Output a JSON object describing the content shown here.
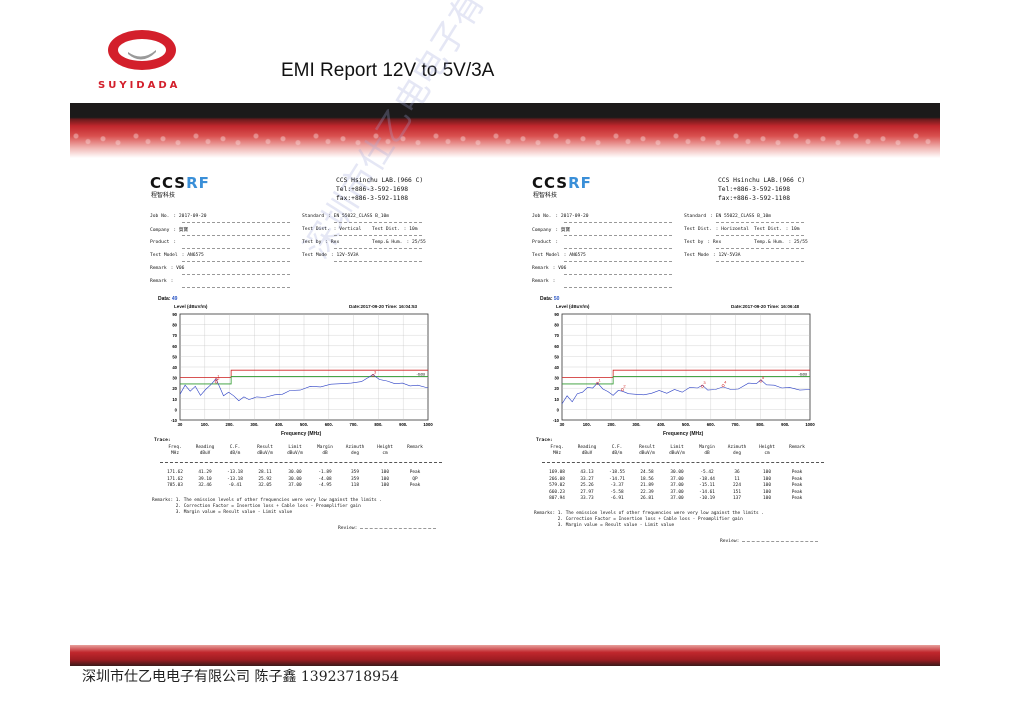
{
  "brand": {
    "logo_text": "SUYIDADA",
    "accent": "#d31f2b"
  },
  "title": "EMI Report 12V to 5V/3A",
  "footer": "深圳市仕乙电电子有限公司 陈子鑫 13923718954",
  "watermark": "深圳市仕乙电电子有限公司",
  "reports": [
    {
      "logo_main": "CCS",
      "logo_rf": "RF",
      "logo_sub": "程智科技",
      "lab_lines": [
        "CCS Hsinchu LAB.(966 C)",
        "Tel:+886-3-592-1698",
        "fax:+886-3-592-1108"
      ],
      "fields": {
        "job_no": {
          "label": "Job No.",
          "value": ": 2017-09-20"
        },
        "company": {
          "label": "Company",
          "value": ": 賀寶"
        },
        "product": {
          "label": "Product",
          "value": ":"
        },
        "test_model": {
          "label": "Test Model",
          "value": ": AN6575"
        },
        "remark1": {
          "label": "Remark",
          "value": ": V06"
        },
        "remark2": {
          "label": "Remark",
          "value": ":"
        },
        "standard": {
          "label": "Standard",
          "value": ": EN 55022_CLASS B_10m"
        },
        "test_dist": {
          "label": "Test Dist.",
          "value": ": Vertical"
        },
        "test_dist2": {
          "label": "Test Dist.",
          "value": ": 10m"
        },
        "test_by": {
          "label": "Test by",
          "value": ": Rex"
        },
        "temp_hum": {
          "label": "Temp.& Hum.",
          "value": ": 25/55"
        },
        "test_mode": {
          "label": "Test Mode",
          "value": ": 12V-5V3A"
        }
      },
      "data_label": "Data:",
      "data_no": "49",
      "date": "Date:2017-09-20  Time: 16:04:53",
      "level_label": "Level (dBuV/m)",
      "freq_label": "Frequency (MHz)",
      "limit_label": "-6dB",
      "trace_label": "Trace:",
      "headers": [
        "Freq.",
        "Reading",
        "C.F.",
        "Result",
        "Limit",
        "Margin",
        "Azimuth",
        "Height",
        "Remark"
      ],
      "units": [
        "MHz",
        "dBuV",
        "dB/m",
        "dBuV/m",
        "dBuV/m",
        "dB",
        "deg",
        "cm",
        ""
      ],
      "rows": [
        [
          "171.62",
          "41.29",
          "-13.18",
          "28.11",
          "30.00",
          "-1.89",
          "359",
          "100",
          "Peak"
        ],
        [
          "171.62",
          "39.10",
          "-13.18",
          "25.92",
          "30.00",
          "-4.08",
          "359",
          "100",
          "QP"
        ],
        [
          "785.03",
          "32.46",
          "-0.41",
          "32.05",
          "37.00",
          "-4.95",
          "118",
          "100",
          "Peak"
        ]
      ],
      "remarks": [
        "Remarks: 1. The emission levels of other frequencies were very low against the limits .",
        "         2. Correction Factor = Insertion loss + Cable loss - Preamplifier gain",
        "         3. Margin value = Result value - Limit value"
      ],
      "review": "Review:",
      "chart_data": {
        "type": "line",
        "xlabel": "Frequency (MHz)",
        "ylabel": "Level (dBuV/m)",
        "xlim": [
          30,
          1000
        ],
        "ylim": [
          -10,
          90
        ],
        "xticks": [
          "30",
          "100.",
          "200.",
          "300.",
          "400.",
          "500.",
          "600.",
          "700.",
          "800.",
          "900.",
          "1000"
        ],
        "yticks": [
          "90",
          "80",
          "70",
          "60",
          "50",
          "40",
          "30",
          "20",
          "10",
          "0",
          "-10"
        ],
        "limit_steps": [
          [
            30,
            230,
            30
          ],
          [
            230,
            1000,
            37
          ]
        ],
        "margin_steps": [
          [
            30,
            230,
            24
          ],
          [
            230,
            1000,
            31
          ]
        ],
        "markers": [
          {
            "label": "1",
            "x": 171.62,
            "y": 28.11
          },
          {
            "label": "2",
            "x": 171.62,
            "y": 25.92
          },
          {
            "label": "3",
            "x": 785.03,
            "y": 32.05
          }
        ],
        "trace_points": [
          [
            30,
            15
          ],
          [
            50,
            22
          ],
          [
            70,
            18
          ],
          [
            90,
            21
          ],
          [
            110,
            14
          ],
          [
            130,
            18
          ],
          [
            150,
            24
          ],
          [
            171,
            28
          ],
          [
            185,
            22
          ],
          [
            200,
            12
          ],
          [
            220,
            17
          ],
          [
            240,
            12
          ],
          [
            260,
            9
          ],
          [
            280,
            11
          ],
          [
            300,
            10
          ],
          [
            330,
            11
          ],
          [
            360,
            12
          ],
          [
            400,
            13
          ],
          [
            430,
            15
          ],
          [
            460,
            17
          ],
          [
            500,
            19
          ],
          [
            540,
            21
          ],
          [
            580,
            22
          ],
          [
            620,
            23
          ],
          [
            660,
            25
          ],
          [
            700,
            24
          ],
          [
            740,
            27
          ],
          [
            785,
            32
          ],
          [
            810,
            29
          ],
          [
            840,
            26
          ],
          [
            870,
            25
          ],
          [
            900,
            24
          ],
          [
            930,
            23
          ],
          [
            960,
            22
          ],
          [
            1000,
            21
          ]
        ]
      }
    },
    {
      "logo_main": "CCS",
      "logo_rf": "RF",
      "logo_sub": "程智科技",
      "lab_lines": [
        "CCS Hsinchu LAB.(966 C)",
        "Tel:+886-3-592-1698",
        "fax:+886-3-592-1108"
      ],
      "fields": {
        "job_no": {
          "label": "Job No.",
          "value": ": 2017-09-20"
        },
        "company": {
          "label": "Company",
          "value": ": 賀寶"
        },
        "product": {
          "label": "Product",
          "value": ":"
        },
        "test_model": {
          "label": "Test Model",
          "value": ": AN6575"
        },
        "remark1": {
          "label": "Remark",
          "value": ": V06"
        },
        "remark2": {
          "label": "Remark",
          "value": ":"
        },
        "standard": {
          "label": "Standard",
          "value": ": EN 55022_CLASS B_10m"
        },
        "test_dist": {
          "label": "Test Dist.",
          "value": ": Horizontal"
        },
        "test_dist2": {
          "label": "Test Dist.",
          "value": ": 10m"
        },
        "test_by": {
          "label": "Test by",
          "value": ": Rex"
        },
        "temp_hum": {
          "label": "Temp.& Hum.",
          "value": ": 25/55"
        },
        "test_mode": {
          "label": "Test Mode",
          "value": ": 12V-5V3A"
        }
      },
      "data_label": "Data:",
      "data_no": "50",
      "date": "Date:2017-09-20  Time: 16:06:48",
      "level_label": "Level (dBuV/m)",
      "freq_label": "Frequency (MHz)",
      "limit_label": "-6dB",
      "trace_label": "Trace:",
      "headers": [
        "Freq.",
        "Reading",
        "C.F.",
        "Result",
        "Limit",
        "Margin",
        "Azimuth",
        "Height",
        "Remark"
      ],
      "units": [
        "MHz",
        "dBuV",
        "dB/m",
        "dBuV/m",
        "dBuV/m",
        "dB",
        "deg",
        "cm",
        ""
      ],
      "rows": [
        [
          "169.08",
          "43.13",
          "-18.55",
          "24.58",
          "30.00",
          "-5.42",
          "36",
          "100",
          "Peak"
        ],
        [
          "266.08",
          "33.27",
          "-14.71",
          "18.56",
          "37.00",
          "-18.44",
          "11",
          "100",
          "Peak"
        ],
        [
          "579.02",
          "25.26",
          "-3.37",
          "21.89",
          "37.00",
          "-15.11",
          "224",
          "100",
          "Peak"
        ],
        [
          "660.23",
          "27.97",
          "-5.58",
          "22.39",
          "37.00",
          "-14.61",
          "151",
          "100",
          "Peak"
        ],
        [
          "807.94",
          "33.73",
          "-6.91",
          "26.81",
          "37.00",
          "-10.19",
          "137",
          "100",
          "Peak"
        ]
      ],
      "remarks": [
        "Remarks: 1. The emission levels of other frequencies were very low against the limits .",
        "         2. Correction Factor = Insertion loss + Cable loss - Preamplifier gain",
        "         3. Margin value = Result value - Limit value"
      ],
      "review": "Review:",
      "chart_data": {
        "type": "line",
        "xlabel": "Frequency (MHz)",
        "ylabel": "Level (dBuV/m)",
        "xlim": [
          30,
          1000
        ],
        "ylim": [
          -10,
          90
        ],
        "xticks": [
          "30",
          "100.",
          "200.",
          "300.",
          "400.",
          "500.",
          "600.",
          "700.",
          "800.",
          "900.",
          "1000"
        ],
        "yticks": [
          "90",
          "80",
          "70",
          "60",
          "50",
          "40",
          "30",
          "20",
          "10",
          "0",
          "-10"
        ],
        "limit_steps": [
          [
            30,
            230,
            30
          ],
          [
            230,
            1000,
            37
          ]
        ],
        "margin_steps": [
          [
            30,
            230,
            24
          ],
          [
            230,
            1000,
            31
          ]
        ],
        "markers": [
          {
            "label": "1",
            "x": 169.08,
            "y": 24.58
          },
          {
            "label": "2",
            "x": 266.08,
            "y": 18.56
          },
          {
            "label": "3",
            "x": 579.02,
            "y": 21.89
          },
          {
            "label": "4",
            "x": 660.23,
            "y": 22.39
          },
          {
            "label": "5",
            "x": 807.94,
            "y": 26.81
          }
        ],
        "trace_points": [
          [
            30,
            6
          ],
          [
            50,
            12
          ],
          [
            70,
            8
          ],
          [
            90,
            14
          ],
          [
            110,
            17
          ],
          [
            130,
            20
          ],
          [
            150,
            21
          ],
          [
            169,
            24
          ],
          [
            190,
            20
          ],
          [
            210,
            16
          ],
          [
            230,
            14
          ],
          [
            250,
            17
          ],
          [
            266,
            18
          ],
          [
            290,
            14
          ],
          [
            320,
            15
          ],
          [
            350,
            13
          ],
          [
            380,
            16
          ],
          [
            410,
            17
          ],
          [
            440,
            16
          ],
          [
            470,
            18
          ],
          [
            500,
            17
          ],
          [
            530,
            20
          ],
          [
            560,
            21
          ],
          [
            579,
            22
          ],
          [
            600,
            19
          ],
          [
            630,
            18
          ],
          [
            660,
            22
          ],
          [
            690,
            18
          ],
          [
            720,
            20
          ],
          [
            760,
            24
          ],
          [
            790,
            25
          ],
          [
            808,
            27
          ],
          [
            830,
            24
          ],
          [
            860,
            22
          ],
          [
            890,
            21
          ],
          [
            920,
            20
          ],
          [
            960,
            19
          ],
          [
            1000,
            18
          ]
        ]
      }
    }
  ]
}
